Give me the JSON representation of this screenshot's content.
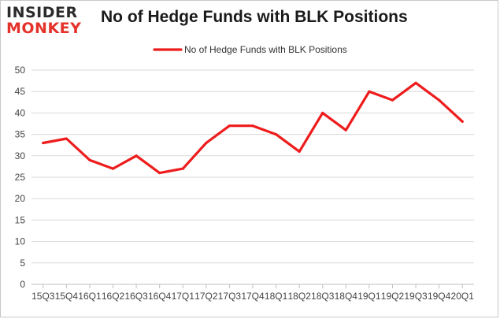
{
  "logo": {
    "line1": "INSIDER",
    "line2": "MONKEY"
  },
  "colors": {
    "series": "#ee1c1c",
    "grid": "#d9d9d9",
    "axis": "#bfbfbf"
  },
  "chart_data": {
    "type": "line",
    "title": "No of Hedge Funds with BLK Positions",
    "xlabel": "",
    "ylabel": "",
    "categories": [
      "15Q3",
      "15Q4",
      "16Q1",
      "16Q2",
      "16Q3",
      "16Q4",
      "17Q1",
      "17Q2",
      "17Q3",
      "17Q4",
      "18Q1",
      "18Q2",
      "18Q3",
      "18Q4",
      "19Q1",
      "19Q2",
      "19Q3",
      "19Q4",
      "20Q1"
    ],
    "series": [
      {
        "name": "No of Hedge Funds with BLK Positions",
        "values": [
          33,
          34,
          29,
          27,
          30,
          26,
          27,
          33,
          37,
          37,
          35,
          31,
          40,
          36,
          45,
          43,
          47,
          43,
          38
        ]
      }
    ],
    "ylim": [
      0,
      50
    ],
    "yticks": [
      0,
      5,
      10,
      15,
      20,
      25,
      30,
      35,
      40,
      45,
      50
    ],
    "grid": true,
    "legend": "top-center"
  }
}
